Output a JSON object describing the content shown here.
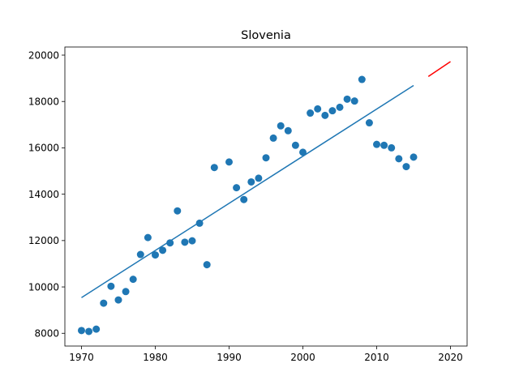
{
  "chart_data": {
    "type": "scatter",
    "title": "Slovenia",
    "xlabel": "",
    "ylabel": "",
    "xlim": [
      1967.75,
      2022.25
    ],
    "ylim": [
      7450,
      20350
    ],
    "xticks": [
      1970,
      1980,
      1990,
      2000,
      2010,
      2020
    ],
    "yticks": [
      8000,
      10000,
      12000,
      14000,
      16000,
      18000,
      20000
    ],
    "grid": false,
    "legend": "none",
    "colors": {
      "points": "#1f77b4",
      "fit_line": "#1f77b4",
      "forecast_line": "#ff0000"
    },
    "series": [
      {
        "kind": "scatter",
        "points": [
          [
            1970,
            8120
          ],
          [
            1971,
            8080
          ],
          [
            1972,
            8180
          ],
          [
            1973,
            9300
          ],
          [
            1974,
            10030
          ],
          [
            1975,
            9440
          ],
          [
            1976,
            9800
          ],
          [
            1977,
            10330
          ],
          [
            1978,
            11400
          ],
          [
            1979,
            12130
          ],
          [
            1980,
            11380
          ],
          [
            1981,
            11580
          ],
          [
            1982,
            11900
          ],
          [
            1983,
            13280
          ],
          [
            1984,
            11930
          ],
          [
            1985,
            11990
          ],
          [
            1986,
            12750
          ],
          [
            1987,
            10960
          ],
          [
            1988,
            15150
          ],
          [
            1989,
            null
          ],
          [
            1990,
            15390
          ],
          [
            1991,
            14280
          ],
          [
            1992,
            13770
          ],
          [
            1993,
            14530
          ],
          [
            1994,
            14690
          ],
          [
            1995,
            15570
          ],
          [
            1996,
            16420
          ],
          [
            1997,
            16950
          ],
          [
            1998,
            16740
          ],
          [
            1999,
            16110
          ],
          [
            2000,
            15810
          ],
          [
            2001,
            17500
          ],
          [
            2002,
            17680
          ],
          [
            2003,
            17400
          ],
          [
            2004,
            17600
          ],
          [
            2005,
            17750
          ],
          [
            2006,
            18100
          ],
          [
            2007,
            18020
          ],
          [
            2008,
            18950
          ],
          [
            2009,
            17080
          ],
          [
            2010,
            16150
          ],
          [
            2011,
            16110
          ],
          [
            2012,
            16000
          ],
          [
            2013,
            15530
          ],
          [
            2014,
            15190
          ],
          [
            2015,
            15600
          ]
        ]
      },
      {
        "kind": "line",
        "points": [
          [
            1970,
            9540
          ],
          [
            2015,
            18690
          ]
        ]
      },
      {
        "kind": "line",
        "points": [
          [
            2017,
            19080
          ],
          [
            2020,
            19720
          ]
        ]
      }
    ]
  }
}
